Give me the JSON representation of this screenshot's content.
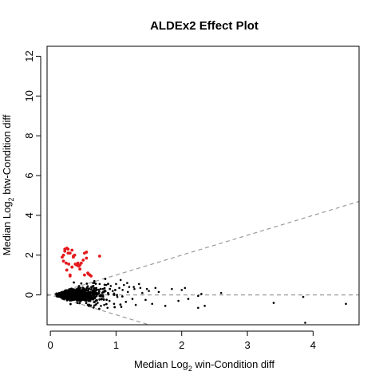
{
  "chart_data": {
    "type": "scatter",
    "title": "ALDEx2 Effect Plot",
    "xlabel": {
      "prefix": "Median  Log",
      "sub": "2",
      "suffix": "  win-Condition diff"
    },
    "ylabel": {
      "prefix": "Median  Log",
      "sub": "2",
      "suffix": "  btw-Condition diff"
    },
    "xlim": [
      -0.05,
      4.7
    ],
    "ylim": [
      -1.5,
      12.5
    ],
    "xticks": [
      0,
      1,
      2,
      3,
      4
    ],
    "yticks": [
      0,
      2,
      4,
      6,
      8,
      10,
      12
    ],
    "grid": false,
    "reference_lines": [
      {
        "kind": "horizontal",
        "y": 0,
        "style": "dashed",
        "color": "#9a9a9a"
      },
      {
        "kind": "slope",
        "slope": 1,
        "style": "dashed",
        "color": "#9a9a9a"
      },
      {
        "kind": "slope",
        "slope": -1,
        "style": "dashed",
        "color": "#9a9a9a"
      }
    ],
    "series": [
      {
        "color": "#e41a1c",
        "x": [
          0.18,
          0.2,
          0.22,
          0.25,
          0.27,
          0.3,
          0.33,
          0.37,
          0.2,
          0.24,
          0.28,
          0.35,
          0.4,
          0.43,
          0.47,
          0.52,
          0.55,
          0.58,
          0.25,
          0.3,
          0.33,
          0.38,
          0.45,
          0.52,
          0.57,
          0.6,
          0.22,
          0.27,
          0.35,
          0.42,
          0.5,
          0.55,
          0.62,
          0.75,
          0.3,
          0.45
        ],
        "y": [
          1.9,
          2.0,
          2.2,
          2.35,
          2.3,
          2.1,
          2.25,
          2.0,
          1.7,
          1.6,
          1.55,
          1.95,
          1.5,
          1.45,
          1.6,
          2.1,
          2.15,
          1.05,
          1.25,
          1.0,
          1.4,
          1.55,
          1.3,
          1.0,
          1.1,
          1.0,
          2.3,
          2.1,
          1.9,
          1.6,
          1.75,
          1.85,
          0.95,
          1.95,
          0.95,
          1.5
        ]
      },
      {
        "color": "#000000",
        "x": [
          0.65,
          0.7,
          0.72,
          0.75,
          0.78,
          0.8,
          0.82,
          0.85,
          0.88,
          0.9,
          0.92,
          0.95,
          0.97,
          1.0,
          1.02,
          1.05,
          1.08,
          1.1,
          1.12,
          1.15,
          1.18,
          1.2,
          1.25,
          1.28,
          1.3,
          1.35,
          1.4,
          1.45,
          1.5,
          1.55,
          1.6,
          1.65,
          1.75,
          1.85,
          1.95,
          2.0,
          2.05,
          2.1,
          2.25,
          2.25,
          2.3,
          2.35,
          2.6,
          3.4,
          3.85,
          3.88,
          4.5,
          1.07,
          1.17,
          1.27,
          1.37,
          1.47,
          0.87,
          0.77,
          0.67,
          0.57
        ],
        "y": [
          0.6,
          0.35,
          -0.4,
          0.55,
          -0.2,
          0.3,
          -0.5,
          0.5,
          0.1,
          -0.3,
          0.45,
          0.2,
          -0.45,
          0.55,
          -0.1,
          0.35,
          -0.6,
          0.25,
          0.5,
          -0.35,
          0.15,
          0.4,
          -0.2,
          0.3,
          -0.5,
          0.55,
          0.1,
          -0.25,
          0.2,
          -0.45,
          0.35,
          0.15,
          -0.55,
          0.3,
          -0.3,
          0.25,
          0.35,
          -0.2,
          -0.05,
          -0.65,
          0.05,
          -0.55,
          0.1,
          -0.4,
          -0.1,
          -1.4,
          -0.45,
          0.75,
          0.6,
          0.4,
          0.35,
          0.3,
          -0.65,
          -0.55,
          0.7,
          -0.5
        ]
      }
    ]
  }
}
